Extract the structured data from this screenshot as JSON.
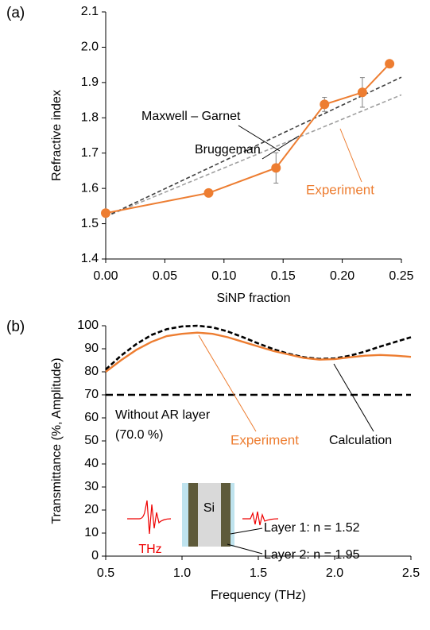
{
  "chart_data": [
    {
      "type": "line",
      "panel_label": "(a)",
      "xlabel": "SiNP fraction",
      "ylabel": "Refractive index",
      "xlim": [
        0,
        0.25
      ],
      "xticks": [
        {
          "value": 0,
          "label": "0.00"
        },
        0.05,
        {
          "value": 0.1,
          "label": "0.10"
        },
        0.15,
        {
          "value": 0.2,
          "label": "0.20"
        },
        0.25
      ],
      "ylim": [
        1.4,
        2.1
      ],
      "yticks": [
        1.4,
        1.5,
        1.6,
        1.7,
        1.8,
        1.9,
        {
          "value": 2.0,
          "label": "2.0"
        },
        2.1
      ],
      "series": [
        {
          "name": "Experiment",
          "color": "#ed7d31",
          "x": [
            0,
            0.087,
            0.144,
            0.185,
            0.217,
            0.24
          ],
          "values": [
            1.53,
            1.587,
            1.658,
            1.838,
            1.872,
            1.953
          ],
          "errors": [
            null,
            null,
            0.043,
            0.02,
            0.042,
            null
          ]
        },
        {
          "name": "Bruggeman",
          "color": "#404040",
          "x": [
            0,
            0.25
          ],
          "values": [
            1.52,
            1.915
          ]
        },
        {
          "name": "Maxwell – Garnet",
          "color": "#a0a0a0",
          "x": [
            0,
            0.25
          ],
          "values": [
            1.52,
            1.865
          ]
        }
      ]
    },
    {
      "type": "line",
      "panel_label": "(b)",
      "xlabel": "Frequency (THz)",
      "ylabel": "Transmittance (%, Amplitude)",
      "xlim": [
        0.5,
        2.5
      ],
      "xticks": [
        0.5,
        {
          "value": 1,
          "label": "1.0"
        },
        1.5,
        {
          "value": 2,
          "label": "2.0"
        },
        2.5
      ],
      "ylim": [
        0,
        100
      ],
      "yticks": [
        0,
        10,
        20,
        30,
        40,
        50,
        60,
        70,
        80,
        90,
        100
      ],
      "x": [
        0.5,
        0.6,
        0.7,
        0.8,
        0.9,
        1.0,
        1.1,
        1.2,
        1.3,
        1.4,
        1.5,
        1.6,
        1.7,
        1.8,
        1.9,
        2.0,
        2.1,
        2.2,
        2.3,
        2.4,
        2.5
      ],
      "series": [
        {
          "name": "Experiment",
          "color": "#ed7d31",
          "values": [
            80,
            85,
            89.5,
            93,
            95.5,
            96.5,
            97,
            96.5,
            95,
            93,
            91,
            89,
            87.5,
            86,
            85.3,
            85.5,
            86.3,
            87,
            87.3,
            87,
            86.5
          ]
        },
        {
          "name": "Calculation",
          "color": "#000000",
          "values": [
            81,
            87,
            92,
            96,
            98.5,
            99.7,
            100,
            99.3,
            97.5,
            95,
            92.3,
            89.8,
            87.8,
            86.3,
            85.6,
            85.8,
            87,
            88.8,
            91,
            93,
            95
          ]
        },
        {
          "name": "Without AR layer",
          "color": "#000000",
          "values": [
            70,
            70,
            70,
            70,
            70,
            70,
            70,
            70,
            70,
            70,
            70,
            70,
            70,
            70,
            70,
            70,
            70,
            70,
            70,
            70,
            70
          ]
        }
      ],
      "annotations": [
        "(70.0 %)"
      ],
      "inset": {
        "core": "Si",
        "wave": "THz",
        "layer1": "Layer 1: n = 1.52",
        "layer2": "Layer 2: n = 1.95"
      }
    }
  ]
}
